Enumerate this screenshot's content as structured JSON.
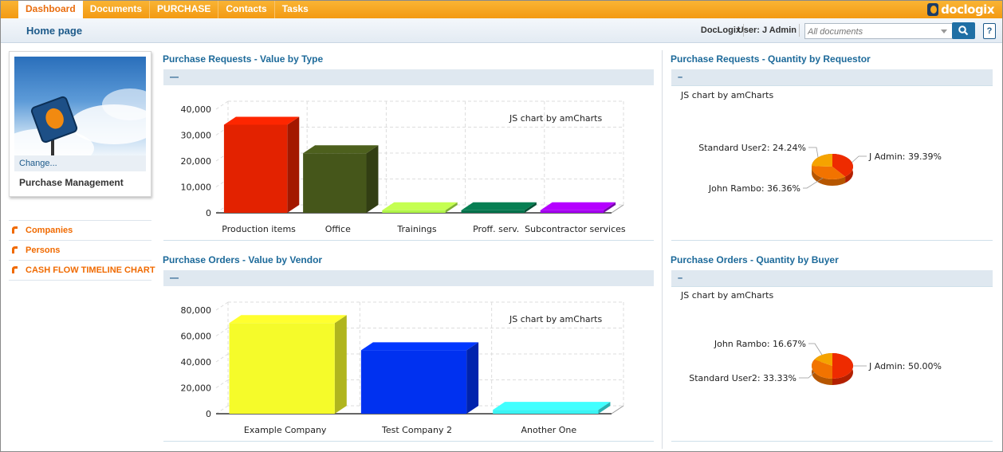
{
  "nav": {
    "tabs": [
      "Dashboard",
      "Documents",
      "PURCHASE",
      "Contacts",
      "Tasks"
    ],
    "active": "Dashboard",
    "logo": "doclogix"
  },
  "header": {
    "title": "Home page",
    "company": "DocLogix",
    "user": "User: J Admin",
    "search_placeholder": "All documents",
    "help_icon": "question-icon"
  },
  "sidebar": {
    "change_label": "Change...",
    "card_title": "Purchase Management",
    "links": [
      "Companies",
      "Persons",
      "CASH FLOW TIMELINE CHART"
    ]
  },
  "panels": {
    "p1": {
      "title": "Purchase Requests - Value by Type",
      "bar": "—",
      "credit": "JS chart by amCharts"
    },
    "p2": {
      "title": "Purchase Requests - Quantity by Requestor",
      "bar": "–",
      "credit": "JS chart by amCharts"
    },
    "p3": {
      "title": "Purchase Orders - Value by Vendor",
      "bar": "—",
      "credit": "JS chart by amCharts"
    },
    "p4": {
      "title": "Purchase Orders - Quantity by Buyer",
      "bar": "–",
      "credit": "JS chart by amCharts"
    }
  },
  "chart_data": [
    {
      "type": "bar",
      "categories": [
        "Production items",
        "Office",
        "Trainings",
        "Proff. serv.",
        "Subcontractor services"
      ],
      "values": [
        34000,
        23000,
        1000,
        1000,
        1000
      ],
      "colors": [
        "#e32200",
        "#45561a",
        "#b0f548",
        "#05714a",
        "#a200ee"
      ],
      "yticks": [
        "0",
        "10,000",
        "20,000",
        "30,000",
        "40,000"
      ],
      "ylim": [
        0,
        40000
      ],
      "grid": true
    },
    {
      "type": "pie",
      "labels": [
        "J Admin",
        "John Rambo",
        "Standard User2"
      ],
      "values": [
        39.39,
        36.36,
        24.24
      ],
      "label_text": [
        "J Admin: 39.39%",
        "John Rambo: 36.36%",
        "Standard User2: 24.24%"
      ],
      "colors": [
        "#ee2b00",
        "#f27300",
        "#f5a300"
      ]
    },
    {
      "type": "bar",
      "categories": [
        "Example Company",
        "Test Company 2",
        "Another One"
      ],
      "values": [
        70000,
        49000,
        3000
      ],
      "colors": [
        "#f5fb2a",
        "#0031f0",
        "#3af4f4"
      ],
      "yticks": [
        "0",
        "20,000",
        "40,000",
        "60,000",
        "80,000"
      ],
      "ylim": [
        0,
        80000
      ],
      "grid": true
    },
    {
      "type": "pie",
      "labels": [
        "J Admin",
        "Standard User2",
        "John Rambo"
      ],
      "values": [
        50.0,
        33.33,
        16.67
      ],
      "label_text": [
        "J Admin: 50.00%",
        "Standard User2: 33.33%",
        "John Rambo: 16.67%"
      ],
      "colors": [
        "#ee2b00",
        "#f27300",
        "#f5a300"
      ]
    }
  ]
}
